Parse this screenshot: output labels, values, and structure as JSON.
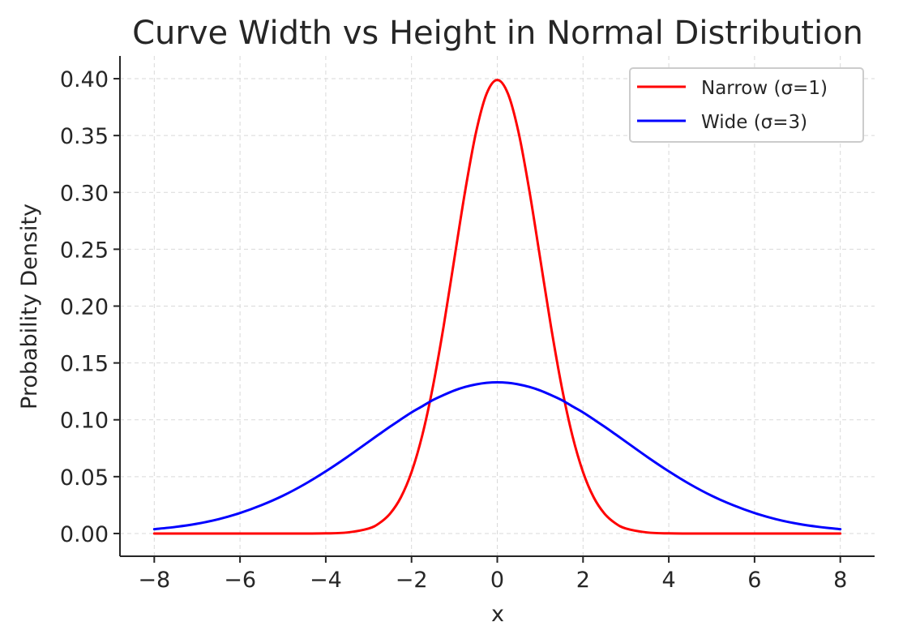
{
  "chart_data": {
    "type": "line",
    "title": "Curve Width vs Height in Normal Distribution",
    "xlabel": "x",
    "ylabel": "Probability Density",
    "xlim": [
      -8.8,
      8.8
    ],
    "ylim": [
      -0.02,
      0.42
    ],
    "x_ticks": [
      -8,
      -6,
      -4,
      -2,
      0,
      2,
      4,
      6,
      8
    ],
    "x_tick_labels": [
      "−8",
      "−6",
      "−4",
      "−2",
      "0",
      "2",
      "4",
      "6",
      "8"
    ],
    "y_ticks": [
      0.0,
      0.05,
      0.1,
      0.15,
      0.2,
      0.25,
      0.3,
      0.35,
      0.4
    ],
    "y_tick_labels": [
      "0.00",
      "0.05",
      "0.10",
      "0.15",
      "0.20",
      "0.25",
      "0.30",
      "0.35",
      "0.40"
    ],
    "grid": true,
    "legend_position": "top-right",
    "x": [
      -8,
      -7.5,
      -7,
      -6.5,
      -6,
      -5.5,
      -5,
      -4.5,
      -4,
      -3.5,
      -3,
      -2.75,
      -2.5,
      -2.25,
      -2,
      -1.75,
      -1.5,
      -1.25,
      -1,
      -0.75,
      -0.5,
      -0.25,
      0,
      0.25,
      0.5,
      0.75,
      1,
      1.25,
      1.5,
      1.75,
      2,
      2.25,
      2.5,
      2.75,
      3,
      3.5,
      4,
      4.5,
      5,
      5.5,
      6,
      6.5,
      7,
      7.5,
      8
    ],
    "series": [
      {
        "name": "Narrow (σ=1)",
        "color": "#ff0000",
        "values": [
          0.0,
          0.0,
          0.0,
          0.0,
          0.0,
          0.0,
          0.0,
          0.0,
          0.0001,
          0.0009,
          0.0044,
          0.0091,
          0.0175,
          0.0317,
          0.054,
          0.0863,
          0.1295,
          0.1826,
          0.242,
          0.3011,
          0.3521,
          0.3867,
          0.3989,
          0.3867,
          0.3521,
          0.3011,
          0.242,
          0.1826,
          0.1295,
          0.0863,
          0.054,
          0.0317,
          0.0175,
          0.0091,
          0.0044,
          0.0009,
          0.0001,
          0.0,
          0.0,
          0.0,
          0.0,
          0.0,
          0.0,
          0.0,
          0.0
        ]
      },
      {
        "name": "Wide (σ=3)",
        "color": "#0000ff",
        "values": [
          0.0038,
          0.0058,
          0.0086,
          0.0126,
          0.018,
          0.0249,
          0.0332,
          0.0432,
          0.0547,
          0.0673,
          0.0807,
          0.0874,
          0.094,
          0.1003,
          0.1065,
          0.1119,
          0.1174,
          0.1218,
          0.1258,
          0.1289,
          0.1311,
          0.1325,
          0.133,
          0.1325,
          0.1311,
          0.1289,
          0.1258,
          0.1218,
          0.1174,
          0.1119,
          0.1065,
          0.1003,
          0.094,
          0.0874,
          0.0807,
          0.0673,
          0.0547,
          0.0432,
          0.0332,
          0.0249,
          0.018,
          0.0126,
          0.0086,
          0.0058,
          0.0038
        ]
      }
    ]
  }
}
